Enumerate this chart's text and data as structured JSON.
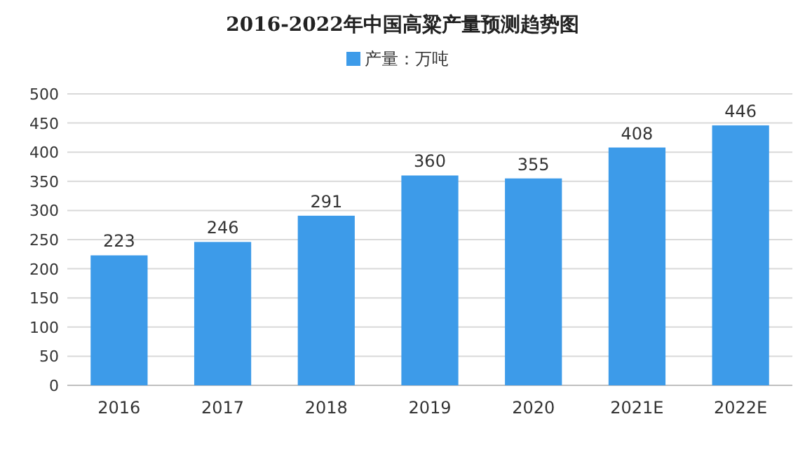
{
  "chart_data": {
    "type": "bar",
    "title": "2016-2022年中国高粱产量预测趋势图",
    "categories": [
      "2016",
      "2017",
      "2018",
      "2019",
      "2020",
      "2021E",
      "2022E"
    ],
    "series": [
      {
        "name": "产量：万吨",
        "color": "#3d9be9",
        "values": [
          223,
          246,
          291,
          360,
          355,
          408,
          446
        ]
      }
    ],
    "ylim": [
      0,
      500
    ],
    "yticks": [
      0,
      50,
      100,
      150,
      200,
      250,
      300,
      350,
      400,
      450,
      500
    ],
    "grid": "y",
    "legend": "top",
    "data_labels": true
  }
}
